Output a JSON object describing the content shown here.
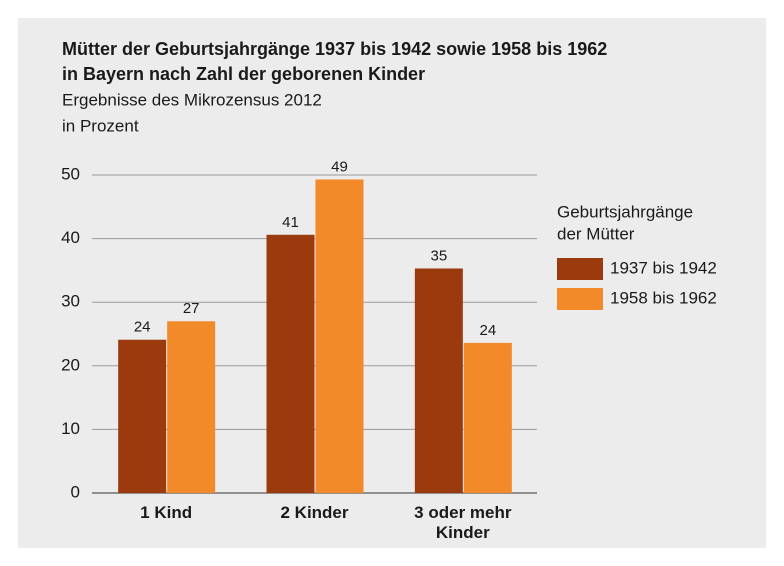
{
  "chart_data": {
    "type": "bar",
    "title": "Mütter der Geburtsjahrgänge 1937 bis 1942 sowie 1958 bis 1962",
    "title_line2": "in Bayern nach Zahl der geborenen Kinder",
    "subtitle": "Ergebnisse des Mikrozensus 2012",
    "unit_label": "in Prozent",
    "categories": [
      "1 Kind",
      "2 Kinder",
      "3 oder mehr Kinder"
    ],
    "series": [
      {
        "name": "1937 bis 1942",
        "color": "#9b3a0d",
        "values": [
          24.1,
          40.6,
          35.3
        ],
        "value_labels": [
          "24",
          "41",
          "35"
        ]
      },
      {
        "name": "1958 bis 1962",
        "color": "#f28a2a",
        "values": [
          27,
          49.3,
          23.6
        ],
        "value_labels": [
          "27",
          "49",
          "24"
        ]
      }
    ],
    "legend_title": [
      "Geburtsjahrgänge",
      "der Mütter"
    ],
    "legend_position": "right",
    "ylim": [
      0,
      50
    ],
    "yticks": [
      0,
      10,
      20,
      30,
      40,
      50
    ],
    "grid": true
  }
}
